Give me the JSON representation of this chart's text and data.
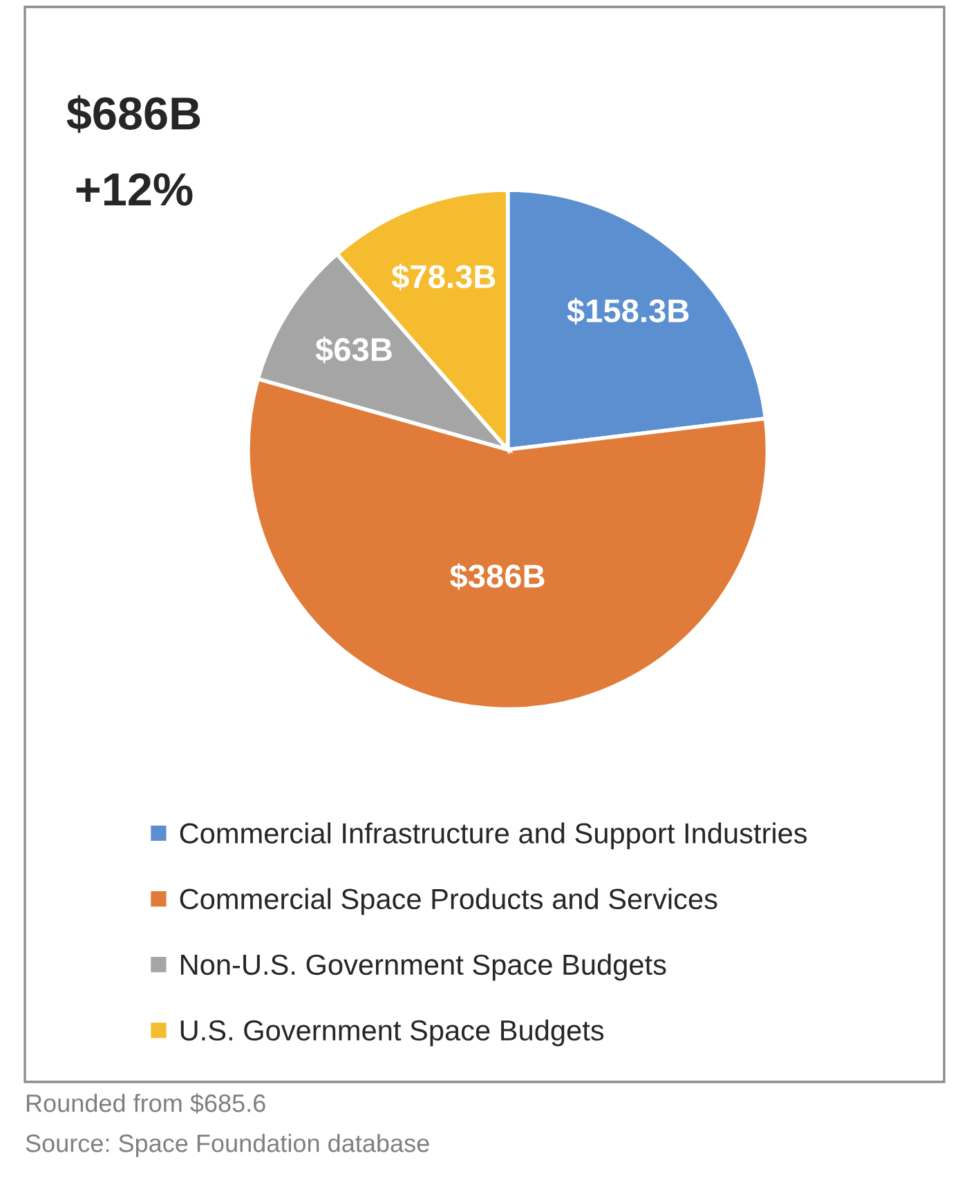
{
  "chart_data": {
    "type": "pie",
    "categories": [
      "Commercial Infrastructure and Support Industries",
      "Commercial Space Products and Services",
      "Non-U.S. Government Space Budgets",
      "U.S. Government Space Budgets"
    ],
    "values": [
      158.3,
      386,
      63,
      78.3
    ],
    "value_labels": [
      "$158.3B",
      "$386B",
      "$63B",
      "$78.3B"
    ],
    "colors": [
      "#5b8fd0",
      "#e07b39",
      "#a5a5a5",
      "#f6bc2f"
    ],
    "legend": "bottom",
    "annotations": [
      "$686B",
      "+12%",
      "Rounded from $685.6",
      "Source: Space Foundation database"
    ]
  }
}
